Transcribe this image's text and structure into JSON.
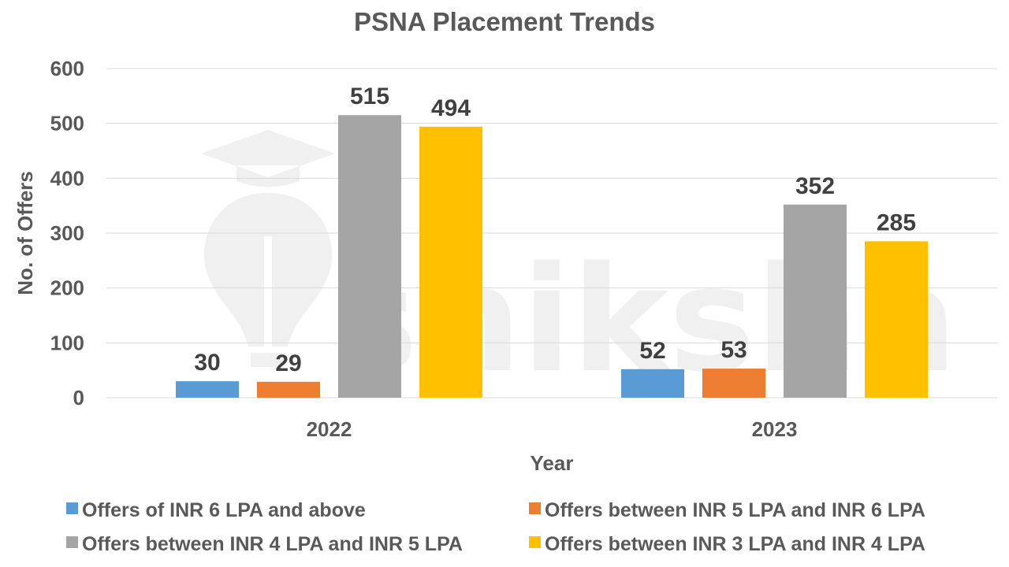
{
  "chart_data": {
    "type": "bar",
    "title": "PSNA Placement Trends",
    "xlabel": "Year",
    "ylabel": "No. of Offers",
    "categories": [
      "2022",
      "2023"
    ],
    "ylim": [
      0,
      600
    ],
    "yticks": [
      0,
      100,
      200,
      300,
      400,
      500,
      600
    ],
    "grid": true,
    "legend_position": "bottom",
    "series": [
      {
        "name": "Offers of INR 6 LPA and above",
        "color": "#5B9BD5",
        "values": [
          30,
          52
        ]
      },
      {
        "name": "Offers between INR 5 LPA and INR 6 LPA",
        "color": "#ED7D31",
        "values": [
          29,
          53
        ]
      },
      {
        "name": "Offers between INR 4 LPA and INR 5 LPA",
        "color": "#A5A5A5",
        "values": [
          515,
          352
        ]
      },
      {
        "name": "Offers between INR 3 LPA and INR 4 LPA",
        "color": "#FFC000",
        "values": [
          494,
          285
        ]
      }
    ]
  },
  "watermark": {
    "text": "shiksha",
    "icon": "graduation-cap-bulb-icon"
  }
}
